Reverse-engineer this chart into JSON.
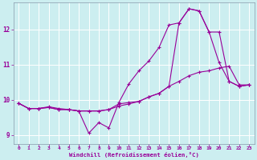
{
  "xlabel": "Windchill (Refroidissement éolien,°C)",
  "bg_color": "#cceef0",
  "grid_color": "#ffffff",
  "line_color": "#990099",
  "xlim": [
    -0.5,
    23.5
  ],
  "ylim": [
    8.75,
    12.75
  ],
  "xticks": [
    0,
    1,
    2,
    3,
    4,
    5,
    6,
    7,
    8,
    9,
    10,
    11,
    12,
    13,
    14,
    15,
    16,
    17,
    18,
    19,
    20,
    21,
    22,
    23
  ],
  "yticks": [
    9,
    10,
    11,
    12
  ],
  "line1_x": [
    0,
    1,
    2,
    3,
    4,
    5,
    6,
    7,
    8,
    9,
    10,
    11,
    12,
    13,
    14,
    15,
    16,
    17,
    18,
    19,
    20,
    21,
    22,
    23
  ],
  "line1_y": [
    9.9,
    9.75,
    9.75,
    9.8,
    9.75,
    9.72,
    9.68,
    9.05,
    9.35,
    9.2,
    9.92,
    10.45,
    10.82,
    11.1,
    11.48,
    12.12,
    12.18,
    12.58,
    12.52,
    11.92,
    11.05,
    10.52,
    10.38,
    10.42
  ],
  "line2_x": [
    0,
    1,
    2,
    3,
    4,
    5,
    6,
    7,
    8,
    9,
    10,
    11,
    12,
    13,
    14,
    15,
    16,
    17,
    18,
    19,
    20,
    21,
    22,
    23
  ],
  "line2_y": [
    9.9,
    9.75,
    9.75,
    9.78,
    9.72,
    9.72,
    9.68,
    9.68,
    9.68,
    9.72,
    9.82,
    9.88,
    9.95,
    10.08,
    10.18,
    10.38,
    10.52,
    10.68,
    10.78,
    10.82,
    10.9,
    10.95,
    10.42,
    10.42
  ],
  "line3_x": [
    0,
    1,
    2,
    3,
    4,
    5,
    6,
    7,
    8,
    9,
    10,
    11,
    12,
    13,
    14,
    15,
    16,
    17,
    18,
    19,
    20,
    21,
    22,
    23
  ],
  "line3_y": [
    9.9,
    9.75,
    9.75,
    9.78,
    9.72,
    9.72,
    9.68,
    9.68,
    9.68,
    9.72,
    9.88,
    9.92,
    9.95,
    10.08,
    10.18,
    10.38,
    12.18,
    12.58,
    12.52,
    11.92,
    11.92,
    10.52,
    10.38,
    10.42
  ]
}
